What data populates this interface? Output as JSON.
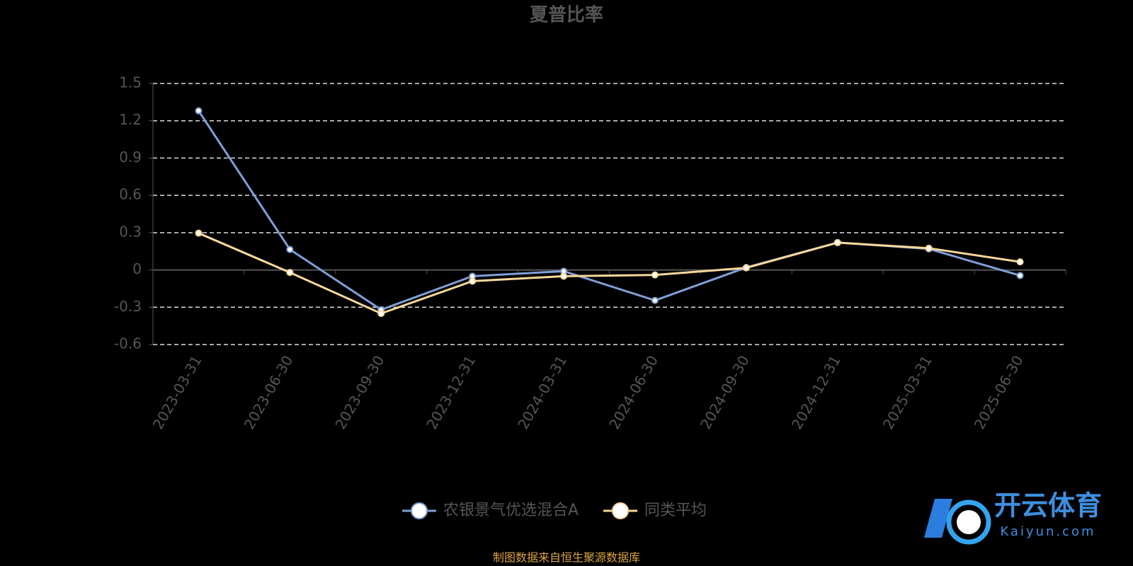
{
  "chart_data": {
    "type": "line",
    "title": "夏普比率",
    "categories": [
      "2023-03-31",
      "2023-06-30",
      "2023-09-30",
      "2023-12-31",
      "2024-03-31",
      "2024-06-30",
      "2024-09-30",
      "2024-12-31",
      "2025-03-31",
      "2025-06-30"
    ],
    "series": [
      {
        "name": "农银景气优选混合A",
        "color": "#7f9fd6",
        "values": [
          1.28,
          0.165,
          -0.32,
          -0.05,
          -0.01,
          -0.245,
          0.02,
          0.22,
          0.17,
          -0.045
        ]
      },
      {
        "name": "同类平均",
        "color": "#f7d79a",
        "values": [
          0.296,
          -0.02,
          -0.35,
          -0.09,
          -0.05,
          -0.04,
          0.017,
          0.22,
          0.175,
          0.065
        ]
      }
    ],
    "ylim": [
      -0.6,
      1.5
    ],
    "yticks": [
      -0.6,
      -0.3,
      0,
      0.3,
      0.6,
      0.9,
      1.2,
      1.5
    ],
    "grid": true
  },
  "footer": "制图数据来自恒生聚源数据库",
  "logo": {
    "name": "开云体育",
    "url": "Kaiyun.com"
  }
}
